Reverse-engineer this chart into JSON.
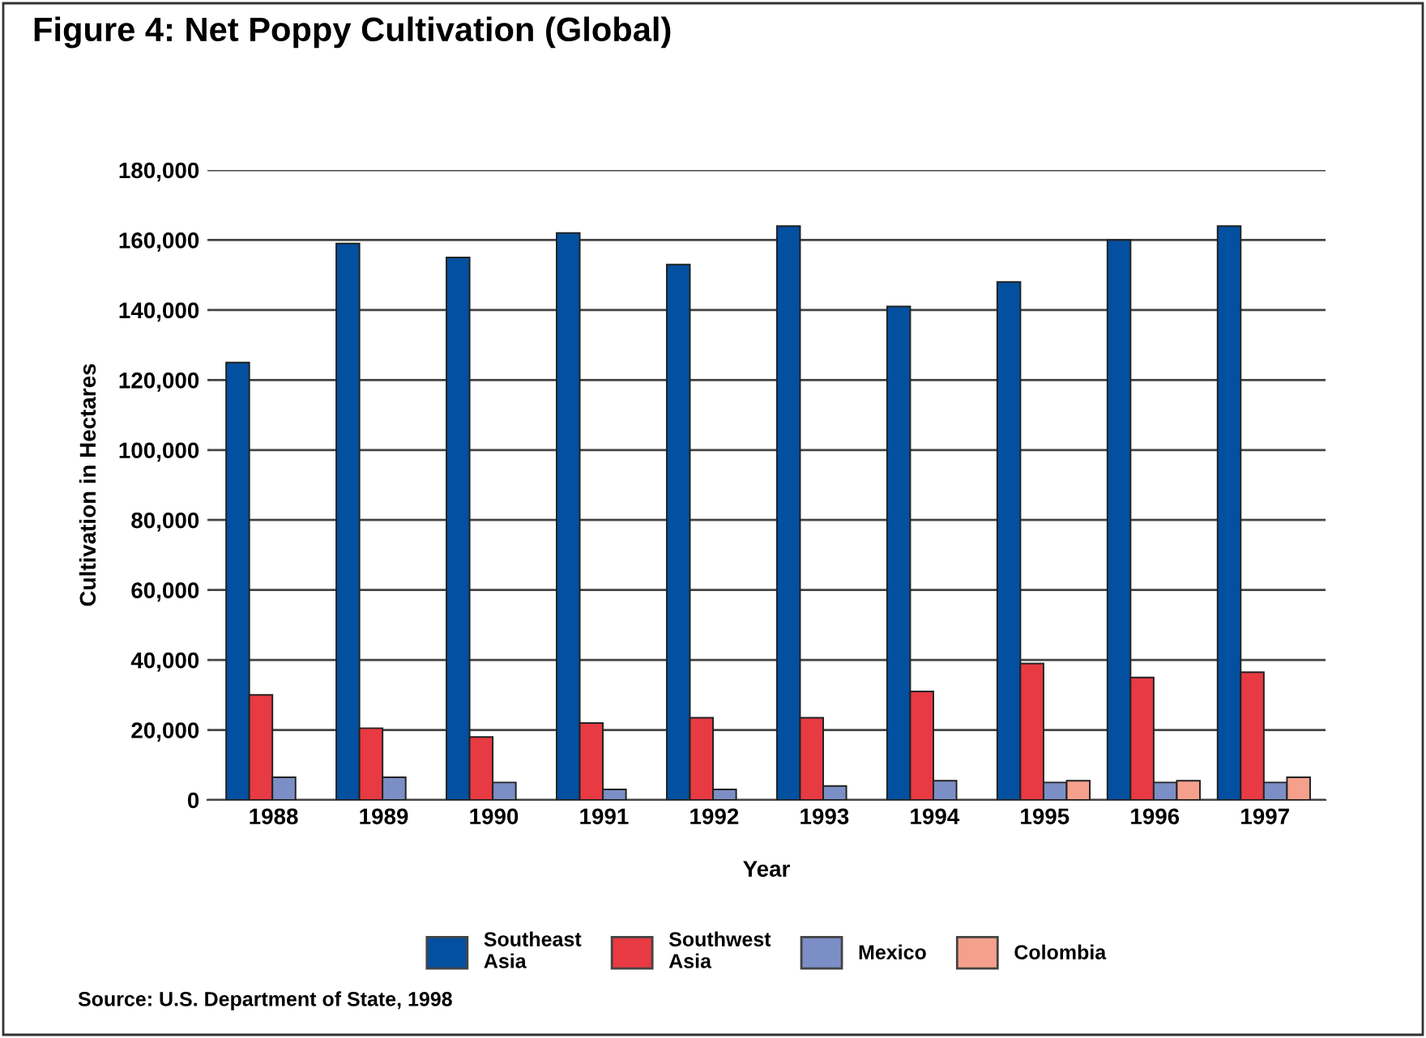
{
  "chart_data": {
    "type": "bar",
    "title": "Figure 4: Net Poppy Cultivation (Global)",
    "xlabel": "Year",
    "ylabel": "Cultivation in Hectares",
    "categories": [
      "1988",
      "1989",
      "1990",
      "1991",
      "1992",
      "1993",
      "1994",
      "1995",
      "1996",
      "1997"
    ],
    "series": [
      {
        "name": "Southeast\nAsia",
        "color": "#0350a0",
        "values": [
          125000,
          159000,
          155000,
          162000,
          153000,
          164000,
          141000,
          148000,
          160000,
          164000
        ]
      },
      {
        "name": "Southwest\nAsia",
        "color": "#e83a43",
        "values": [
          30000,
          20500,
          18000,
          22000,
          23500,
          23500,
          31000,
          39000,
          35000,
          36500
        ]
      },
      {
        "name": "Mexico",
        "color": "#7b8fc6",
        "values": [
          6500,
          6500,
          5000,
          3000,
          3000,
          4000,
          5500,
          5000,
          5000,
          5000
        ]
      },
      {
        "name": "Colombia",
        "color": "#f4a08c",
        "values": [
          null,
          null,
          null,
          null,
          null,
          null,
          null,
          5500,
          5500,
          6500
        ]
      }
    ],
    "ylim": [
      0,
      180000
    ],
    "yticks": [
      {
        "value": 0,
        "label": "0"
      },
      {
        "value": 20000,
        "label": "20,000"
      },
      {
        "value": 40000,
        "label": "40,000"
      },
      {
        "value": 60000,
        "label": "60,000"
      },
      {
        "value": 80000,
        "label": "80,000"
      },
      {
        "value": 100000,
        "label": "100,000"
      },
      {
        "value": 120000,
        "label": "120,000"
      },
      {
        "value": 140000,
        "label": "140,000"
      },
      {
        "value": 160000,
        "label": "160,000"
      },
      {
        "value": 180000,
        "label": "180,000"
      }
    ],
    "grid": "y",
    "legend": "bottom",
    "annotations": [
      "Source: U.S. Department of State, 1998"
    ]
  }
}
